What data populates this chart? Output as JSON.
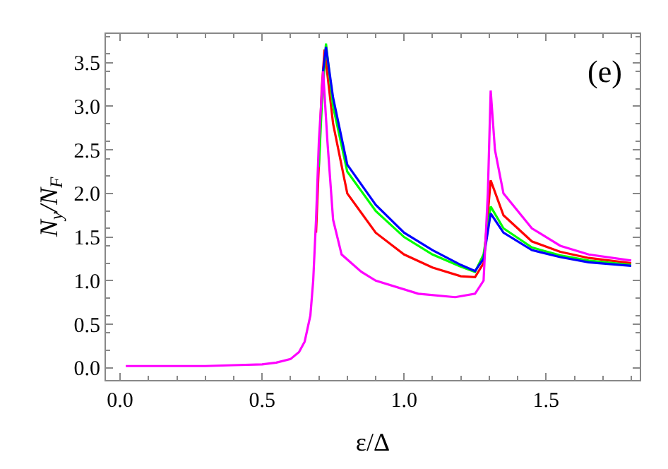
{
  "chart_data": {
    "type": "line",
    "xlabel": "ε/Δ",
    "ylabel": "N$_{y}$/N$_{F}$",
    "annotations": [
      "(e)"
    ],
    "xlim": [
      -0.05,
      1.83
    ],
    "ylim": [
      -0.14,
      3.83
    ],
    "xticks": [
      {
        "value": 0,
        "label": "0.0"
      },
      {
        "value": 0.5,
        "label": "0.5"
      },
      {
        "value": 1,
        "label": "1.0"
      },
      {
        "value": 1.5,
        "label": "1.5"
      }
    ],
    "yticks": [
      {
        "value": 0,
        "label": "0.0"
      },
      {
        "value": 0.5,
        "label": "0.5"
      },
      {
        "value": 1,
        "label": "1.0"
      },
      {
        "value": 1.5,
        "label": "1.5"
      },
      {
        "value": 2,
        "label": "2.0"
      },
      {
        "value": 2.5,
        "label": "2.5"
      },
      {
        "value": 3,
        "label": "3.0"
      },
      {
        "value": 3.5,
        "label": "3.5"
      }
    ],
    "legend": false,
    "marker": "none",
    "line_style": "solid",
    "series": [
      {
        "color": "#ff0000",
        "x": [
          0.69,
          0.7,
          0.71,
          0.72,
          0.75,
          0.8,
          0.9,
          1.0,
          1.1,
          1.2,
          1.25,
          1.28,
          1.305,
          1.35,
          1.45,
          1.55,
          1.65,
          1.8
        ],
        "values": [
          1.55,
          2.35,
          3.2,
          3.65,
          2.8,
          2.0,
          1.55,
          1.3,
          1.15,
          1.05,
          1.04,
          1.2,
          2.15,
          1.75,
          1.45,
          1.33,
          1.26,
          1.2
        ]
      },
      {
        "color": "#00ff00",
        "x": [
          0.7,
          0.71,
          0.725,
          0.75,
          0.8,
          0.9,
          1.0,
          1.1,
          1.2,
          1.25,
          1.28,
          1.305,
          1.35,
          1.45,
          1.55,
          1.65,
          1.8
        ],
        "values": [
          2.3,
          3.0,
          3.72,
          3.0,
          2.25,
          1.8,
          1.5,
          1.3,
          1.16,
          1.1,
          1.3,
          1.85,
          1.6,
          1.38,
          1.29,
          1.23,
          1.18
        ]
      },
      {
        "color": "#0000ff",
        "x": [
          0.715,
          0.725,
          0.75,
          0.8,
          0.9,
          1.0,
          1.1,
          1.2,
          1.25,
          1.28,
          1.305,
          1.35,
          1.45,
          1.55,
          1.65,
          1.8
        ],
        "values": [
          3.4,
          3.68,
          3.1,
          2.33,
          1.87,
          1.55,
          1.35,
          1.18,
          1.11,
          1.25,
          1.77,
          1.55,
          1.35,
          1.27,
          1.21,
          1.17
        ]
      },
      {
        "color": "#ff00ff",
        "x": [
          0.02,
          0.1,
          0.2,
          0.3,
          0.4,
          0.5,
          0.55,
          0.6,
          0.63,
          0.65,
          0.67,
          0.68,
          0.69,
          0.7,
          0.715,
          0.73,
          0.75,
          0.78,
          0.85,
          0.9,
          1.05,
          1.18,
          1.25,
          1.28,
          1.295,
          1.305,
          1.32,
          1.35,
          1.45,
          1.55,
          1.65,
          1.8
        ],
        "values": [
          0.02,
          0.02,
          0.02,
          0.02,
          0.03,
          0.04,
          0.06,
          0.1,
          0.18,
          0.3,
          0.6,
          1.0,
          1.7,
          2.6,
          3.4,
          2.6,
          1.7,
          1.3,
          1.1,
          1.0,
          0.85,
          0.81,
          0.85,
          1.0,
          2.0,
          3.18,
          2.5,
          2.0,
          1.6,
          1.4,
          1.3,
          1.23
        ]
      }
    ]
  }
}
